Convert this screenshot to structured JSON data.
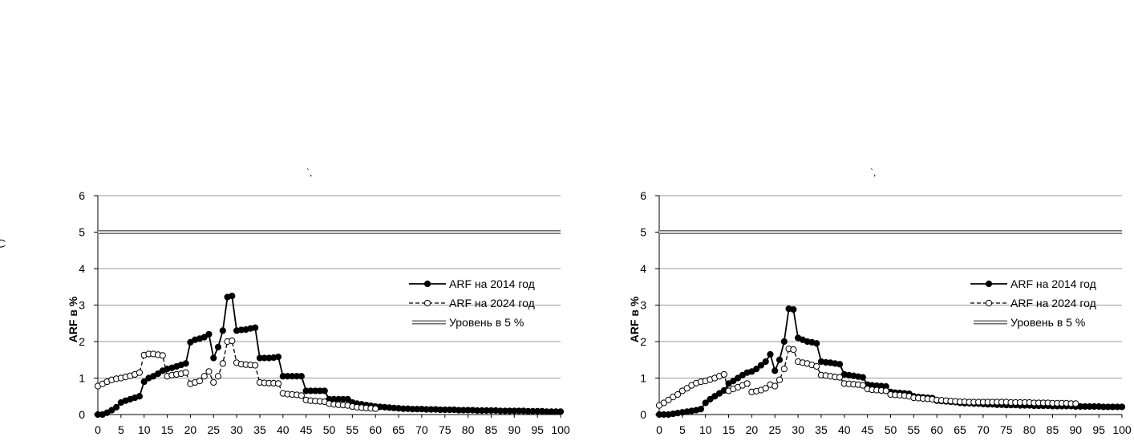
{
  "page": {
    "fragments": {
      "side_mark": "( )",
      "left_top_mark": "`,",
      "right_top_mark": "`,"
    }
  },
  "colors": {
    "background": "#ffffff",
    "grid": "#9a9a9a",
    "series_2014": "#000000",
    "series_2024": "#000000",
    "level_5_line": "#6b6b6b",
    "level_5_fill": "#f0f0f0"
  },
  "chart_data": [
    {
      "type": "line",
      "title": "",
      "xlabel": "",
      "ylabel": "ARF в %",
      "xlim": [
        0,
        100
      ],
      "ylim": [
        0,
        6
      ],
      "xticks": [
        0,
        5,
        10,
        15,
        20,
        25,
        30,
        35,
        40,
        45,
        50,
        55,
        60,
        65,
        70,
        75,
        80,
        85,
        90,
        95,
        100
      ],
      "yticks": [
        0,
        1,
        2,
        3,
        4,
        5,
        6
      ],
      "grid": "horizontal",
      "legend_position": "right",
      "series": [
        {
          "name": "ARF на 2014 год",
          "marker": "filled-circle",
          "line": "solid",
          "x": [
            0,
            1,
            2,
            3,
            4,
            5,
            6,
            7,
            8,
            9,
            10,
            11,
            12,
            13,
            14,
            15,
            16,
            17,
            18,
            19,
            20,
            21,
            22,
            23,
            24,
            25,
            26,
            27,
            28,
            29,
            30,
            31,
            32,
            33,
            34,
            35,
            36,
            37,
            38,
            39,
            40,
            41,
            42,
            43,
            44,
            45,
            46,
            47,
            48,
            49,
            50,
            51,
            52,
            53,
            54,
            55,
            56,
            57,
            58,
            59,
            60,
            61,
            62,
            63,
            64,
            65,
            66,
            67,
            68,
            69,
            70,
            71,
            72,
            73,
            74,
            75,
            76,
            77,
            78,
            79,
            80,
            81,
            82,
            83,
            84,
            85,
            86,
            87,
            88,
            89,
            90,
            91,
            92,
            93,
            94,
            95,
            96,
            97,
            98,
            99,
            100
          ],
          "y": [
            0.0,
            0.0,
            0.05,
            0.12,
            0.2,
            0.33,
            0.38,
            0.42,
            0.46,
            0.5,
            0.9,
            1.0,
            1.05,
            1.12,
            1.2,
            1.25,
            1.28,
            1.32,
            1.36,
            1.4,
            1.98,
            2.05,
            2.08,
            2.12,
            2.2,
            1.55,
            1.85,
            2.3,
            3.22,
            3.25,
            2.3,
            2.32,
            2.33,
            2.36,
            2.38,
            1.55,
            1.55,
            1.55,
            1.56,
            1.58,
            1.05,
            1.05,
            1.05,
            1.05,
            1.05,
            0.65,
            0.65,
            0.65,
            0.65,
            0.65,
            0.42,
            0.42,
            0.42,
            0.42,
            0.42,
            0.33,
            0.3,
            0.28,
            0.26,
            0.24,
            0.22,
            0.21,
            0.2,
            0.19,
            0.18,
            0.17,
            0.16,
            0.16,
            0.15,
            0.15,
            0.15,
            0.14,
            0.14,
            0.14,
            0.13,
            0.13,
            0.13,
            0.13,
            0.12,
            0.12,
            0.12,
            0.12,
            0.11,
            0.11,
            0.11,
            0.11,
            0.11,
            0.1,
            0.1,
            0.1,
            0.1,
            0.1,
            0.1,
            0.09,
            0.09,
            0.09,
            0.09,
            0.08,
            0.08,
            0.08,
            0.08
          ]
        },
        {
          "name": "ARF на 2024 год",
          "marker": "open-circle",
          "line": "dashed",
          "x": [
            0,
            1,
            2,
            3,
            4,
            5,
            6,
            7,
            8,
            9,
            10,
            11,
            12,
            13,
            14,
            15,
            16,
            17,
            18,
            19,
            20,
            21,
            22,
            23,
            24,
            25,
            26,
            27,
            28,
            29,
            30,
            31,
            32,
            33,
            34,
            35,
            36,
            37,
            38,
            39,
            40,
            41,
            42,
            43,
            44,
            45,
            46,
            47,
            48,
            49,
            50,
            51,
            52,
            53,
            54,
            55,
            56,
            57,
            58,
            59,
            60
          ],
          "y": [
            0.78,
            0.84,
            0.9,
            0.95,
            0.98,
            1.0,
            1.03,
            1.06,
            1.1,
            1.15,
            1.63,
            1.66,
            1.66,
            1.64,
            1.62,
            1.05,
            1.08,
            1.1,
            1.12,
            1.15,
            0.84,
            0.88,
            0.92,
            1.05,
            1.18,
            0.88,
            1.05,
            1.4,
            2.0,
            2.02,
            1.42,
            1.38,
            1.37,
            1.36,
            1.35,
            0.88,
            0.87,
            0.86,
            0.86,
            0.85,
            0.58,
            0.56,
            0.55,
            0.54,
            0.52,
            0.4,
            0.38,
            0.37,
            0.36,
            0.35,
            0.3,
            0.28,
            0.27,
            0.26,
            0.25,
            0.22,
            0.2,
            0.19,
            0.18,
            0.17,
            0.16
          ]
        },
        {
          "name": "Уровень в 5 %",
          "marker": "none",
          "line": "double",
          "x": [
            0,
            100
          ],
          "y": [
            5,
            5
          ]
        }
      ]
    },
    {
      "type": "line",
      "title": "",
      "xlabel": "",
      "ylabel": "ARF в %",
      "xlim": [
        0,
        100
      ],
      "ylim": [
        0,
        6
      ],
      "xticks": [
        0,
        5,
        10,
        15,
        20,
        25,
        30,
        35,
        40,
        45,
        50,
        55,
        60,
        65,
        70,
        75,
        80,
        85,
        90,
        95,
        100
      ],
      "yticks": [
        0,
        1,
        2,
        3,
        4,
        5,
        6
      ],
      "grid": "horizontal",
      "legend_position": "right",
      "series": [
        {
          "name": "ARF на 2014 год",
          "marker": "filled-circle",
          "line": "solid",
          "x": [
            0,
            1,
            2,
            3,
            4,
            5,
            6,
            7,
            8,
            9,
            10,
            11,
            12,
            13,
            14,
            15,
            16,
            17,
            18,
            19,
            20,
            21,
            22,
            23,
            24,
            25,
            26,
            27,
            28,
            29,
            30,
            31,
            32,
            33,
            34,
            35,
            36,
            37,
            38,
            39,
            40,
            41,
            42,
            43,
            44,
            45,
            46,
            47,
            48,
            49,
            50,
            51,
            52,
            53,
            54,
            55,
            56,
            57,
            58,
            59,
            60,
            61,
            62,
            63,
            64,
            65,
            66,
            67,
            68,
            69,
            70,
            71,
            72,
            73,
            74,
            75,
            76,
            77,
            78,
            79,
            80,
            81,
            82,
            83,
            84,
            85,
            86,
            87,
            88,
            89,
            90,
            91,
            92,
            93,
            94,
            95,
            96,
            97,
            98,
            99,
            100
          ],
          "y": [
            0.0,
            0.0,
            0.0,
            0.02,
            0.04,
            0.06,
            0.08,
            0.1,
            0.12,
            0.15,
            0.32,
            0.42,
            0.5,
            0.58,
            0.66,
            0.85,
            0.92,
            1.0,
            1.08,
            1.15,
            1.18,
            1.25,
            1.35,
            1.45,
            1.65,
            1.2,
            1.5,
            2.0,
            2.9,
            2.88,
            2.1,
            2.05,
            2.0,
            1.98,
            1.95,
            1.45,
            1.43,
            1.42,
            1.4,
            1.38,
            1.1,
            1.08,
            1.06,
            1.04,
            1.02,
            0.82,
            0.8,
            0.79,
            0.78,
            0.77,
            0.62,
            0.6,
            0.59,
            0.58,
            0.57,
            0.5,
            0.48,
            0.47,
            0.46,
            0.45,
            0.38,
            0.37,
            0.36,
            0.35,
            0.34,
            0.32,
            0.31,
            0.31,
            0.3,
            0.3,
            0.29,
            0.28,
            0.28,
            0.27,
            0.27,
            0.26,
            0.26,
            0.26,
            0.25,
            0.25,
            0.25,
            0.24,
            0.24,
            0.24,
            0.24,
            0.23,
            0.23,
            0.23,
            0.23,
            0.23,
            0.22,
            0.22,
            0.22,
            0.22,
            0.22,
            0.22,
            0.21,
            0.21,
            0.21,
            0.21,
            0.21
          ]
        },
        {
          "name": "ARF на 2024 год",
          "marker": "open-circle",
          "line": "dashed",
          "x": [
            0,
            1,
            2,
            3,
            4,
            5,
            6,
            7,
            8,
            9,
            10,
            11,
            12,
            13,
            14,
            15,
            16,
            17,
            18,
            19,
            20,
            21,
            22,
            23,
            24,
            25,
            26,
            27,
            28,
            29,
            30,
            31,
            32,
            33,
            34,
            35,
            36,
            37,
            38,
            39,
            40,
            41,
            42,
            43,
            44,
            45,
            46,
            47,
            48,
            49,
            50,
            51,
            52,
            53,
            54,
            55,
            56,
            57,
            58,
            59,
            60,
            61,
            62,
            63,
            64,
            65,
            66,
            67,
            68,
            69,
            70,
            71,
            72,
            73,
            74,
            75,
            76,
            77,
            78,
            79,
            80,
            81,
            82,
            83,
            84,
            85,
            86,
            87,
            88,
            89,
            90
          ],
          "y": [
            0.25,
            0.32,
            0.4,
            0.48,
            0.55,
            0.65,
            0.72,
            0.8,
            0.86,
            0.9,
            0.92,
            0.96,
            1.0,
            1.05,
            1.1,
            0.65,
            0.7,
            0.75,
            0.8,
            0.85,
            0.62,
            0.64,
            0.67,
            0.72,
            0.82,
            0.78,
            0.95,
            1.25,
            1.8,
            1.78,
            1.45,
            1.42,
            1.4,
            1.36,
            1.32,
            1.08,
            1.07,
            1.05,
            1.03,
            1.02,
            0.85,
            0.84,
            0.83,
            0.82,
            0.8,
            0.7,
            0.68,
            0.67,
            0.66,
            0.65,
            0.55,
            0.54,
            0.53,
            0.52,
            0.5,
            0.46,
            0.45,
            0.44,
            0.43,
            0.42,
            0.4,
            0.39,
            0.38,
            0.37,
            0.36,
            0.35,
            0.35,
            0.34,
            0.34,
            0.34,
            0.34,
            0.34,
            0.34,
            0.34,
            0.34,
            0.34,
            0.33,
            0.33,
            0.33,
            0.33,
            0.33,
            0.32,
            0.32,
            0.32,
            0.32,
            0.31,
            0.31,
            0.31,
            0.31,
            0.3,
            0.3
          ]
        },
        {
          "name": "Уровень в 5 %",
          "marker": "none",
          "line": "double",
          "x": [
            0,
            100
          ],
          "y": [
            5,
            5
          ]
        }
      ]
    }
  ]
}
